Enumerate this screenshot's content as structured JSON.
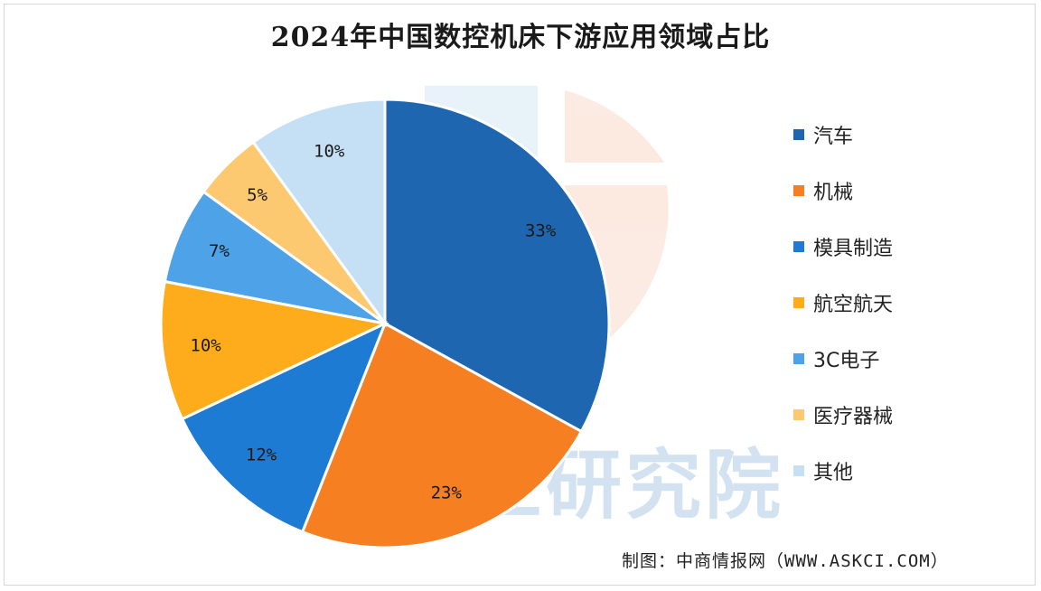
{
  "chart_data": {
    "type": "pie",
    "title": "2024年中国数控机床下游应用领域占比",
    "slices": [
      {
        "label": "汽车",
        "value": 33,
        "display": "33%",
        "color": "#1f66b0"
      },
      {
        "label": "机械",
        "value": 23,
        "display": "23%",
        "color": "#f57f21"
      },
      {
        "label": "模具制造",
        "value": 12,
        "display": "12%",
        "color": "#1d7bd4"
      },
      {
        "label": "航空航天",
        "value": 10,
        "display": "10%",
        "color": "#ffac1c"
      },
      {
        "label": "3C电子",
        "value": 7,
        "display": "7%",
        "color": "#4ea3e8"
      },
      {
        "label": "医疗器械",
        "value": 5,
        "display": "5%",
        "color": "#fcc870"
      },
      {
        "label": "其他",
        "value": 10,
        "display": "10%",
        "color": "#c5dff5"
      }
    ],
    "legend_position": "right",
    "start": "top-clockwise"
  },
  "credit": "制图：中商情报网（WWW.ASKCI.COM）",
  "watermark": {
    "text": "商产业研究院"
  }
}
